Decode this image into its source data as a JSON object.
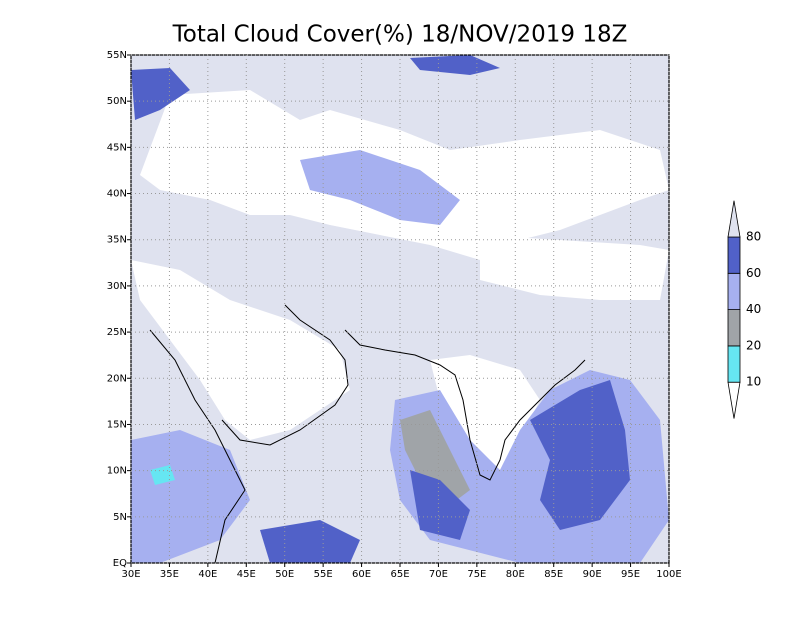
{
  "map": {
    "title": "Total Cloud Cover(%) 18/NOV/2019 18Z",
    "xlim": [
      30,
      100
    ],
    "ylim": [
      0,
      55
    ],
    "xticks": [
      {
        "value": 30,
        "label": "30E"
      },
      {
        "value": 35,
        "label": "35E"
      },
      {
        "value": 40,
        "label": "40E"
      },
      {
        "value": 45,
        "label": "45E"
      },
      {
        "value": 50,
        "label": "50E"
      },
      {
        "value": 55,
        "label": "55E"
      },
      {
        "value": 60,
        "label": "60E"
      },
      {
        "value": 65,
        "label": "65E"
      },
      {
        "value": 70,
        "label": "70E"
      },
      {
        "value": 75,
        "label": "75E"
      },
      {
        "value": 80,
        "label": "80E"
      },
      {
        "value": 85,
        "label": "85E"
      },
      {
        "value": 90,
        "label": "90E"
      },
      {
        "value": 95,
        "label": "95E"
      },
      {
        "value": 100,
        "label": "100E"
      }
    ],
    "yticks": [
      {
        "value": 0,
        "label": "EQ"
      },
      {
        "value": 5,
        "label": "5N"
      },
      {
        "value": 10,
        "label": "10N"
      },
      {
        "value": 15,
        "label": "15N"
      },
      {
        "value": 20,
        "label": "20N"
      },
      {
        "value": 25,
        "label": "25N"
      },
      {
        "value": 30,
        "label": "30N"
      },
      {
        "value": 35,
        "label": "35N"
      },
      {
        "value": 40,
        "label": "40N"
      },
      {
        "value": 45,
        "label": "45N"
      },
      {
        "value": 50,
        "label": "50N"
      },
      {
        "value": 55,
        "label": "55N"
      }
    ],
    "grid": true,
    "colorbar": {
      "levels": [
        10,
        20,
        40,
        60,
        80
      ],
      "colors": [
        "#ffffff",
        "#66e6f2",
        "#a0a4a8",
        "#a6b0f0",
        "#5161c8",
        "#dfe2ef"
      ]
    }
  }
}
